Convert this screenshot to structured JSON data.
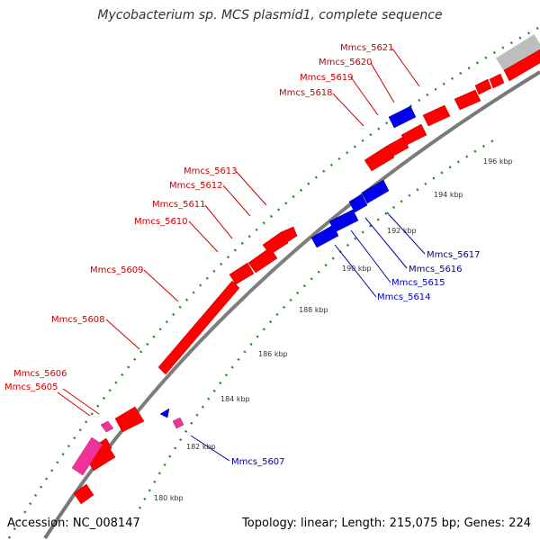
{
  "title": "Mycobacterium sp. MCS plasmid1, complete sequence",
  "footer": {
    "accession": "Accession: NC_008147",
    "topology": "Topology: linear; Length: 215,075 bp; Genes: 224"
  },
  "ruler_ticks": [
    "180 kbp",
    "182 kbp",
    "184 kbp",
    "186 kbp",
    "188 kbp",
    "190 kbp",
    "192 kbp",
    "194 kbp",
    "196 kbp"
  ],
  "forward_genes": [
    "Mmcs_5605",
    "Mmcs_5606",
    "Mmcs_5608",
    "Mmcs_5609",
    "Mmcs_5610",
    "Mmcs_5611",
    "Mmcs_5612",
    "Mmcs_5613",
    "Mmcs_5618",
    "Mmcs_5619",
    "Mmcs_5620",
    "Mmcs_5621"
  ],
  "reverse_genes": [
    "Mmcs_5607",
    "Mmcs_5614",
    "Mmcs_5615",
    "Mmcs_5616",
    "Mmcs_5617"
  ],
  "colors": {
    "forward_cds": "#ff0000",
    "reverse_cds": "#0000ee",
    "pseudo_gene": "#ee3399",
    "label_forward": "#cc0000",
    "label_reverse": "#0000aa",
    "backbone": "#888888",
    "gc_dots": "#228822"
  }
}
